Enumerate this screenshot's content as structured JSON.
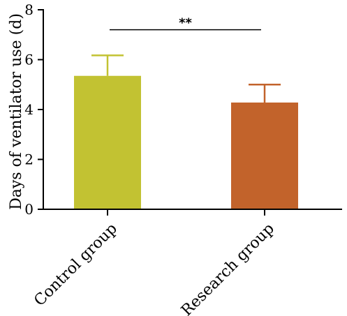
{
  "chart_data": {
    "type": "bar",
    "title": "",
    "xlabel": "",
    "ylabel": "Days of ventilator use (d)",
    "ylim": [
      0,
      8
    ],
    "y_ticks": [
      0,
      2,
      4,
      6,
      8
    ],
    "categories": [
      "Control group",
      "Research group"
    ],
    "values": [
      5.35,
      4.28
    ],
    "errors": [
      0.82,
      0.72
    ],
    "colors": [
      "#c2c232",
      "#c2632b"
    ],
    "grid": false,
    "legend": "none",
    "annotation": {
      "text": "**",
      "from": "Control group",
      "to": "Research group",
      "y": 7.2
    }
  }
}
